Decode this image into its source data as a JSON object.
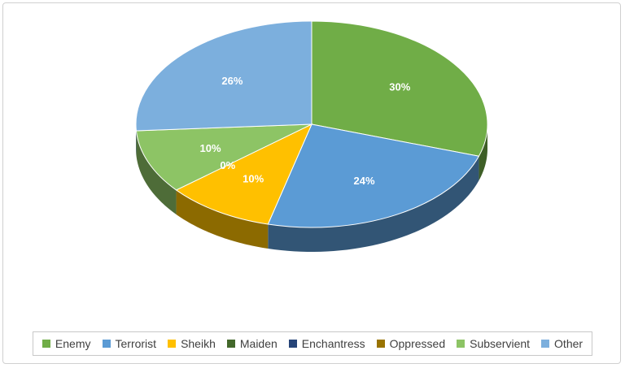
{
  "chart_data": {
    "type": "pie",
    "style": "3d",
    "categories": [
      "Enemy",
      "Terrorist",
      "Sheikh",
      "Maiden",
      "Enchantress",
      "Oppressed",
      "Subservient",
      "Other"
    ],
    "values": [
      30,
      24,
      10,
      0,
      0,
      0,
      10,
      26
    ],
    "slices": [
      {
        "name": "Enemy",
        "value": 30,
        "label": "30%",
        "color": "#70ad47"
      },
      {
        "name": "Terrorist",
        "value": 24,
        "label": "24%",
        "color": "#5b9bd5"
      },
      {
        "name": "Sheikh",
        "value": 10,
        "label": "10%",
        "color": "#ffc000"
      },
      {
        "name": "Maiden",
        "value": 0,
        "label": "0%",
        "color": "#43682b"
      },
      {
        "name": "Enchantress",
        "value": 0,
        "label": "",
        "color": "#264478"
      },
      {
        "name": "Oppressed",
        "value": 0,
        "label": "",
        "color": "#997300"
      },
      {
        "name": "Subservient",
        "value": 10,
        "label": "10%",
        "color": "#8dc465"
      },
      {
        "name": "Other",
        "value": 26,
        "label": "26%",
        "color": "#7cafdd"
      }
    ],
    "title": "",
    "legend_position": "bottom"
  }
}
